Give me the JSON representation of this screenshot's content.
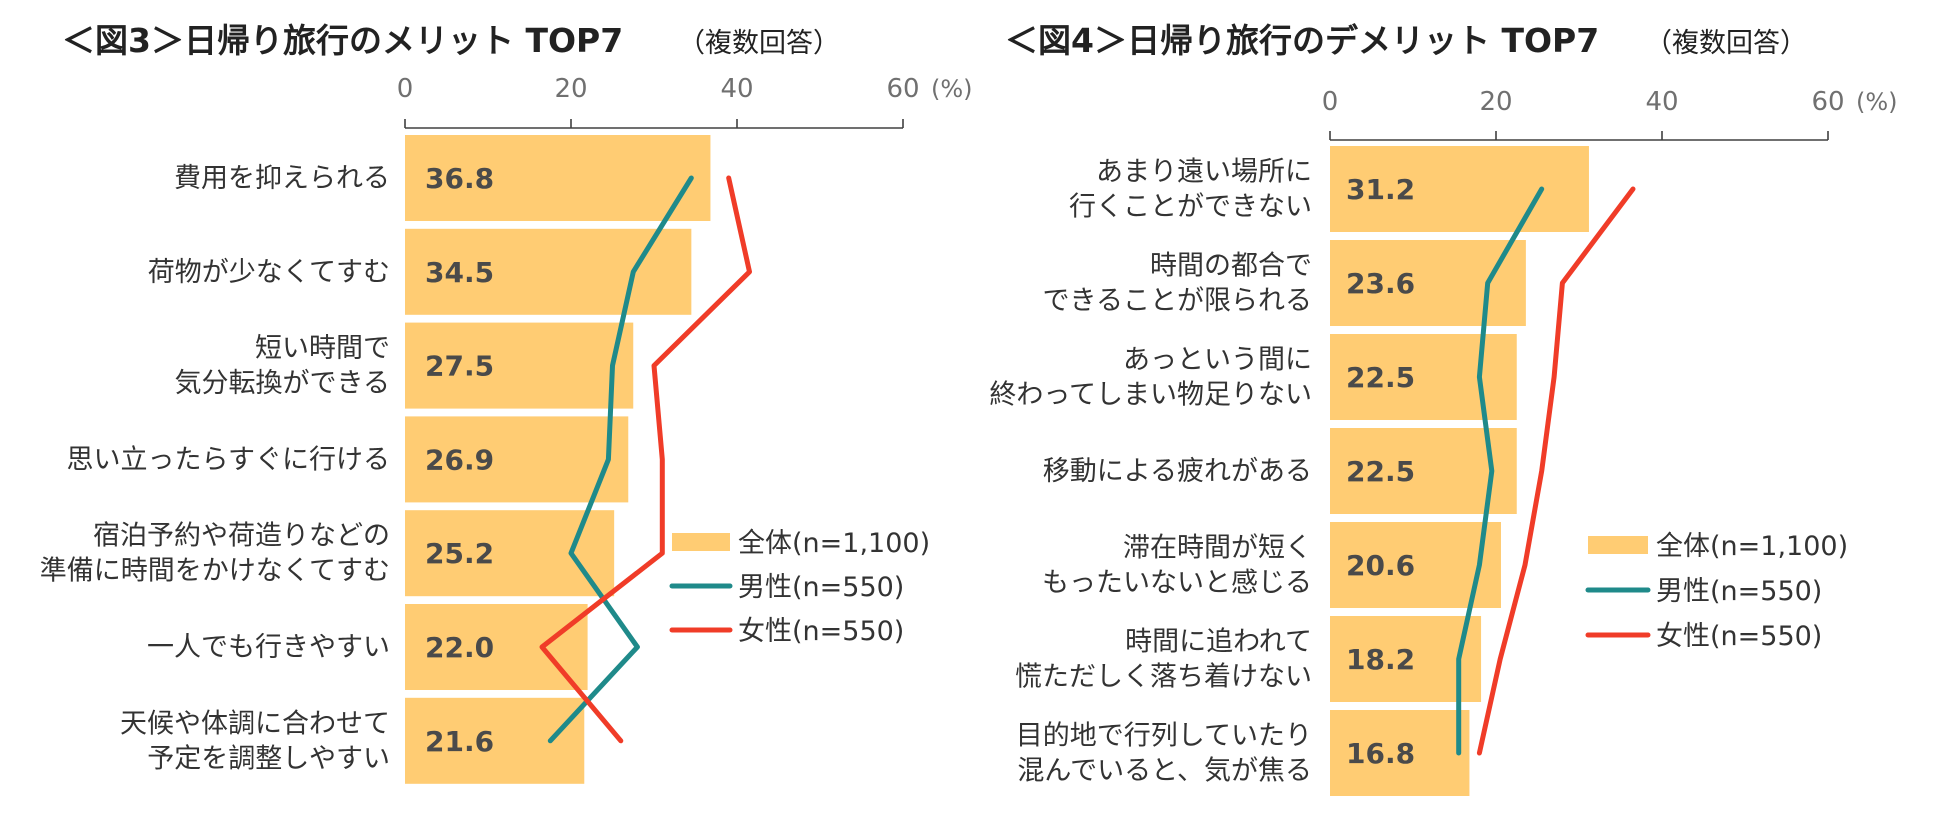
{
  "colors": {
    "bar": "#FFCC73",
    "male": "#1F8A8A",
    "female": "#F03C28",
    "axis": "#404040",
    "tick_text": "#707070",
    "label_text": "#333333",
    "value_text": "#4A4A4A",
    "title_text": "#222222"
  },
  "chart_data": [
    {
      "type": "bar",
      "orientation": "horizontal",
      "title_main": "＜図3＞日帰り旅行のメリット TOP7",
      "title_sub": "（複数回答）",
      "unit_label": "(%)",
      "xlim": [
        0,
        60
      ],
      "xticks": [
        "0",
        "20",
        "40",
        "60"
      ],
      "categories": [
        [
          "費用を抑えられる"
        ],
        [
          "荷物が少なくてすむ"
        ],
        [
          "短い時間で",
          "気分転換ができる"
        ],
        [
          "思い立ったらすぐに行ける"
        ],
        [
          "宿泊予約や荷造りなどの",
          "準備に時間をかけなくてすむ"
        ],
        [
          "一人でも行きやすい"
        ],
        [
          "天候や体調に合わせて",
          "予定を調整しやすい"
        ]
      ],
      "value_labels": [
        "36.8",
        "34.5",
        "27.5",
        "26.9",
        "25.2",
        "22.0",
        "21.6"
      ],
      "series": [
        {
          "name": "全体(n=1,100)",
          "kind": "bar",
          "values": [
            36.8,
            34.5,
            27.5,
            26.9,
            25.2,
            22.0,
            21.6
          ]
        },
        {
          "name": "男性(n=550)",
          "kind": "line",
          "values": [
            34.5,
            27.5,
            25.0,
            24.5,
            20.0,
            28.0,
            17.5
          ]
        },
        {
          "name": "女性(n=550)",
          "kind": "line",
          "values": [
            39.0,
            41.5,
            30.0,
            31.0,
            31.0,
            16.5,
            26.0
          ]
        }
      ]
    },
    {
      "type": "bar",
      "orientation": "horizontal",
      "title_main": "＜図4＞日帰り旅行のデメリット TOP7",
      "title_sub": "（複数回答）",
      "unit_label": "(%)",
      "xlim": [
        0,
        60
      ],
      "xticks": [
        "0",
        "20",
        "40",
        "60"
      ],
      "categories": [
        [
          "あまり遠い場所に",
          "行くことができない"
        ],
        [
          "時間の都合で",
          "できることが限られる"
        ],
        [
          "あっという間に",
          "終わってしまい物足りない"
        ],
        [
          "移動による疲れがある"
        ],
        [
          "滞在時間が短く",
          "もったいないと感じる"
        ],
        [
          "時間に追われて",
          "慌ただしく落ち着けない"
        ],
        [
          "目的地で行列していたり",
          "混んでいると、気が焦る"
        ]
      ],
      "value_labels": [
        "31.2",
        "23.6",
        "22.5",
        "22.5",
        "20.6",
        "18.2",
        "16.8"
      ],
      "series": [
        {
          "name": "全体(n=1,100)",
          "kind": "bar",
          "values": [
            31.2,
            23.6,
            22.5,
            22.5,
            20.6,
            18.2,
            16.8
          ]
        },
        {
          "name": "男性(n=550)",
          "kind": "line",
          "values": [
            25.5,
            19.0,
            18.0,
            19.5,
            18.0,
            15.5,
            15.5
          ]
        },
        {
          "name": "女性(n=550)",
          "kind": "line",
          "values": [
            36.5,
            28.0,
            27.0,
            25.5,
            23.5,
            20.5,
            18.0
          ]
        }
      ]
    }
  ]
}
